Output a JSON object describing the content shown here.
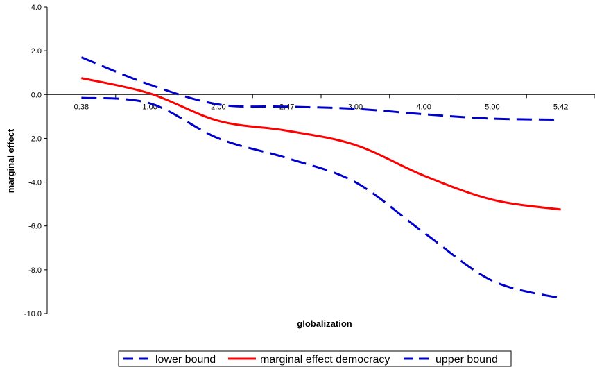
{
  "chart_data": {
    "type": "line",
    "categories": [
      "0.38",
      "1.00",
      "2.00",
      "2.47",
      "3.00",
      "4.00",
      "5.00",
      "5.42"
    ],
    "xlabel": "globalization",
    "ylabel": "marginal effect",
    "ylim": [
      -10.0,
      4.0
    ],
    "yticks": [
      "4.0",
      "2.0",
      "0.0",
      "-2.0",
      "-4.0",
      "-6.0",
      "-8.0",
      "-10.0"
    ],
    "grid": false,
    "legend_position": "bottom",
    "series": [
      {
        "name": "lower bound",
        "style": "dashed",
        "color": "#0000cc",
        "values": [
          -0.15,
          -0.4,
          -2.0,
          -2.9,
          -4.0,
          -6.3,
          -8.5,
          -9.3
        ]
      },
      {
        "name": "marginal effect democracy",
        "style": "solid",
        "color": "#ff0000",
        "values": [
          0.75,
          0.05,
          -1.2,
          -1.65,
          -2.3,
          -3.7,
          -4.8,
          -5.25
        ]
      },
      {
        "name": "upper bound",
        "style": "dashed",
        "color": "#0000cc",
        "values": [
          1.7,
          0.45,
          -0.45,
          -0.55,
          -0.65,
          -0.9,
          -1.1,
          -1.15
        ]
      }
    ]
  }
}
